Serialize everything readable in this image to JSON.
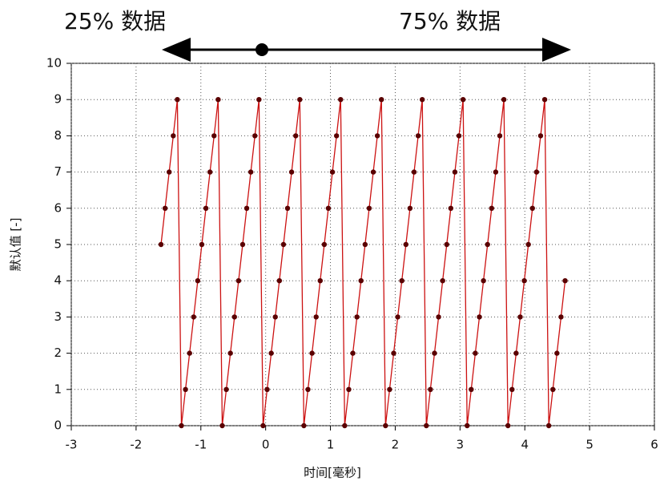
{
  "chart_data": {
    "type": "line",
    "annotations": [
      "25% 数据",
      "75% 数据"
    ],
    "xlabel": "时间[毫秒]",
    "ylabel": "默认值 [-]",
    "x": [
      -1.615,
      -1.552,
      -1.489,
      -1.426,
      -1.363,
      -1.3,
      -1.237,
      -1.174,
      -1.111,
      -1.048,
      -0.985,
      -0.922,
      -0.859,
      -0.796,
      -0.733,
      -0.67,
      -0.607,
      -0.544,
      -0.481,
      -0.418,
      -0.355,
      -0.292,
      -0.229,
      -0.166,
      -0.103,
      -0.04,
      0.023,
      0.086,
      0.149,
      0.212,
      0.275,
      0.338,
      0.401,
      0.464,
      0.527,
      0.59,
      0.653,
      0.716,
      0.779,
      0.842,
      0.905,
      0.968,
      1.031,
      1.094,
      1.157,
      1.22,
      1.283,
      1.346,
      1.409,
      1.472,
      1.535,
      1.598,
      1.661,
      1.724,
      1.787,
      1.85,
      1.913,
      1.976,
      2.039,
      2.102,
      2.165,
      2.228,
      2.291,
      2.354,
      2.417,
      2.48,
      2.543,
      2.606,
      2.669,
      2.732,
      2.795,
      2.858,
      2.921,
      2.984,
      3.047,
      3.11,
      3.173,
      3.236,
      3.299,
      3.362,
      3.425,
      3.488,
      3.551,
      3.614,
      3.677,
      3.74,
      3.803,
      3.866,
      3.929,
      3.992,
      4.055,
      4.118,
      4.181,
      4.244,
      4.307,
      4.37,
      4.433,
      4.496,
      4.559,
      4.622
    ],
    "values": [
      5,
      6,
      7,
      8,
      9,
      0,
      1,
      2,
      3,
      4,
      5,
      6,
      7,
      8,
      9,
      0,
      1,
      2,
      3,
      4,
      5,
      6,
      7,
      8,
      9,
      0,
      1,
      2,
      3,
      4,
      5,
      6,
      7,
      8,
      9,
      0,
      1,
      2,
      3,
      4,
      5,
      6,
      7,
      8,
      9,
      0,
      1,
      2,
      3,
      4,
      5,
      6,
      7,
      8,
      9,
      0,
      1,
      2,
      3,
      4,
      5,
      6,
      7,
      8,
      9,
      0,
      1,
      2,
      3,
      4,
      5,
      6,
      7,
      8,
      9,
      0,
      1,
      2,
      3,
      4,
      5,
      6,
      7,
      8,
      9,
      0,
      1,
      2,
      3,
      4,
      5,
      6,
      7,
      8,
      9,
      0,
      1,
      2,
      3,
      4
    ],
    "color": "#cc1111",
    "marker_color": "#5a0000",
    "xlim": [
      -3,
      6
    ],
    "xticks": [
      -3,
      -2,
      -1,
      0,
      1,
      2,
      3,
      4,
      5,
      6
    ],
    "ylim": [
      0,
      10
    ],
    "yticks": [
      0,
      1,
      2,
      3,
      4,
      5,
      6,
      7,
      8,
      9,
      10
    ],
    "grid": true
  }
}
